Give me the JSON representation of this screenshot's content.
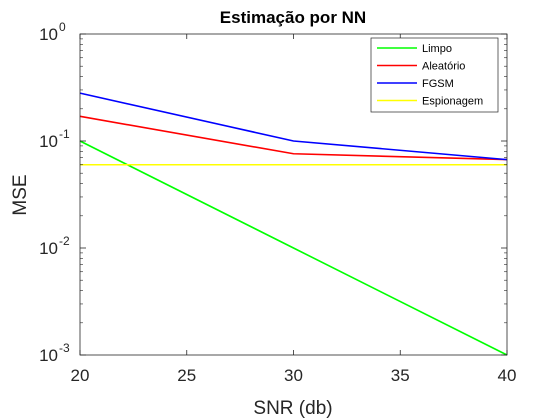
{
  "chart_data": {
    "type": "line",
    "title": "Estimação por NN",
    "xlabel": "SNR (db)",
    "ylabel": "MSE",
    "x": [
      20,
      30,
      40
    ],
    "xlim": [
      20,
      40
    ],
    "xticks": [
      20,
      25,
      30,
      35,
      40
    ],
    "yscale": "log",
    "ylim": [
      0.001,
      1
    ],
    "yticks": [
      {
        "base": "10",
        "exp": "-3",
        "value": 0.001
      },
      {
        "base": "10",
        "exp": "-2",
        "value": 0.01
      },
      {
        "base": "10",
        "exp": "-1",
        "value": 0.1
      },
      {
        "base": "10",
        "exp": "0",
        "value": 1
      }
    ],
    "grid": false,
    "legend_position": "top-right",
    "series": [
      {
        "name": "Limpo",
        "color": "#00ff00",
        "values": [
          0.1,
          0.01,
          0.001
        ]
      },
      {
        "name": "Aleatório",
        "color": "#ff0000",
        "values": [
          0.17,
          0.076,
          0.067
        ]
      },
      {
        "name": "FGSM",
        "color": "#0000ff",
        "values": [
          0.28,
          0.1,
          0.067
        ]
      },
      {
        "name": "Espionagem",
        "color": "#ffff00",
        "values": [
          0.06,
          0.06,
          0.06
        ]
      }
    ]
  }
}
